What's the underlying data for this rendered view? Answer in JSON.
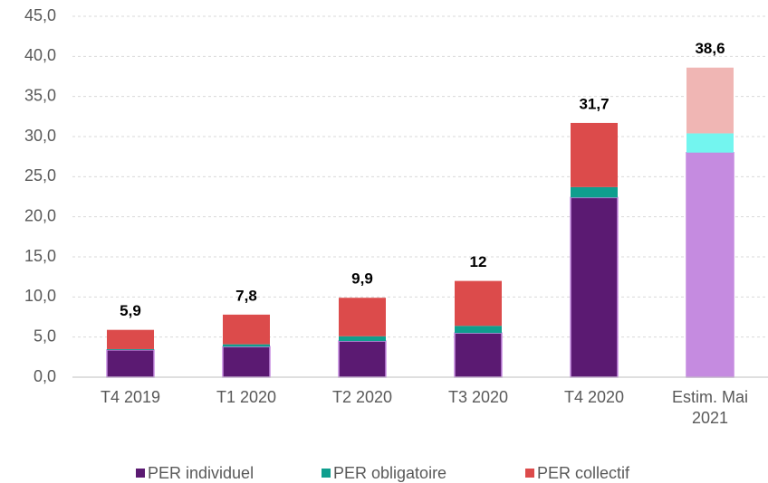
{
  "chart_data": {
    "type": "stacked_bar",
    "categories": [
      "T4 2019",
      "T1 2020",
      "T2 2020",
      "T3 2020",
      "T4 2020",
      "Estim. Mai 2021"
    ],
    "series": [
      {
        "name": "PER individuel",
        "colors": [
          "#5b1a72",
          "#5b1a72",
          "#5b1a72",
          "#5b1a72",
          "#5b1a72",
          "#c58be0"
        ],
        "values": [
          3.4,
          3.8,
          4.5,
          5.5,
          22.4,
          28.0
        ]
      },
      {
        "name": "PER obligatoire",
        "colors": [
          "#0f9e8e",
          "#0f9e8e",
          "#0f9e8e",
          "#0f9e8e",
          "#0f9e8e",
          "#73f5ef"
        ],
        "values": [
          0.1,
          0.3,
          0.6,
          0.9,
          1.3,
          2.4
        ]
      },
      {
        "name": "PER collectif",
        "colors": [
          "#dc4b4b",
          "#dc4b4b",
          "#dc4b4b",
          "#dc4b4b",
          "#dc4b4b",
          "#f0b6b4"
        ],
        "values": [
          2.4,
          3.7,
          4.8,
          5.6,
          8.0,
          8.2
        ]
      }
    ],
    "totals": [
      5.9,
      7.8,
      9.9,
      12,
      31.7,
      38.6
    ],
    "totals_labels": [
      "5,9",
      "7,8",
      "9,9",
      "12",
      "31,7",
      "38,6"
    ],
    "ylim": [
      0,
      45
    ],
    "yticks": [
      {
        "value": 0,
        "label": "0,0"
      },
      {
        "value": 5,
        "label": "5,0"
      },
      {
        "value": 10,
        "label": "10,0"
      },
      {
        "value": 15,
        "label": "15,0"
      },
      {
        "value": 20,
        "label": "20,0"
      },
      {
        "value": 25,
        "label": "25,0"
      },
      {
        "value": 30,
        "label": "30,0"
      },
      {
        "value": 35,
        "label": "35,0"
      },
      {
        "value": 40,
        "label": "40,0"
      },
      {
        "value": 45,
        "label": "45,0"
      }
    ],
    "grid": true,
    "legend": "bottom"
  }
}
